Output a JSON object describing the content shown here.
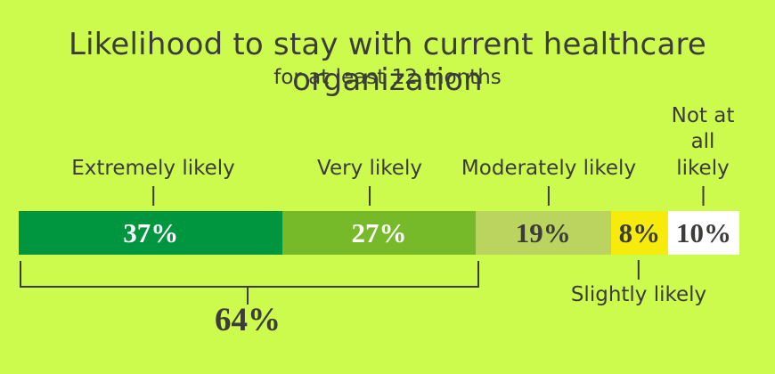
{
  "colors": {
    "background": "#CCFA4D",
    "text": "#3C3C3B",
    "bracket": "#3C3C3B"
  },
  "chart_data": {
    "type": "bar",
    "variant": "horizontal-100-percent-stacked",
    "title": "Likelihood to stay with current healthcare organization",
    "subtitle": "for at least 12 months",
    "unit": "%",
    "categories": [
      "Extremely likely",
      "Very likely",
      "Moderately likely",
      "Slightly likely",
      "Not at all likely"
    ],
    "values": [
      37,
      27,
      19,
      8,
      10
    ],
    "segments": [
      {
        "label": "Extremely likely",
        "display_label": "Extremely likely",
        "value": 37,
        "value_label": "37%",
        "color": "#009640",
        "text_color": "#FFFFFF",
        "label_position": "above"
      },
      {
        "label": "Very likely",
        "display_label": "Very likely",
        "value": 27,
        "value_label": "27%",
        "color": "#76B929",
        "text_color": "#FFFFFF",
        "label_position": "above"
      },
      {
        "label": "Moderately likely",
        "display_label": "Moderately likely",
        "value": 19,
        "value_label": "19%",
        "color": "#BBD45F",
        "text_color": "#3C3C3B",
        "label_position": "above"
      },
      {
        "label": "Slightly likely",
        "display_label": "Slightly likely",
        "value": 8,
        "value_label": "8%",
        "color": "#F6EB0B",
        "text_color": "#3C3C3B",
        "label_position": "below"
      },
      {
        "label": "Not at all likely",
        "display_label": "Not at\nall likely",
        "value": 10,
        "value_label": "10%",
        "color": "#FFFFFF",
        "text_color": "#3C3C3B",
        "label_position": "above"
      }
    ],
    "annotation": {
      "label": "64%",
      "value": 64,
      "spans": [
        "Extremely likely",
        "Very likely"
      ]
    },
    "legend": "none",
    "axes": "none"
  }
}
